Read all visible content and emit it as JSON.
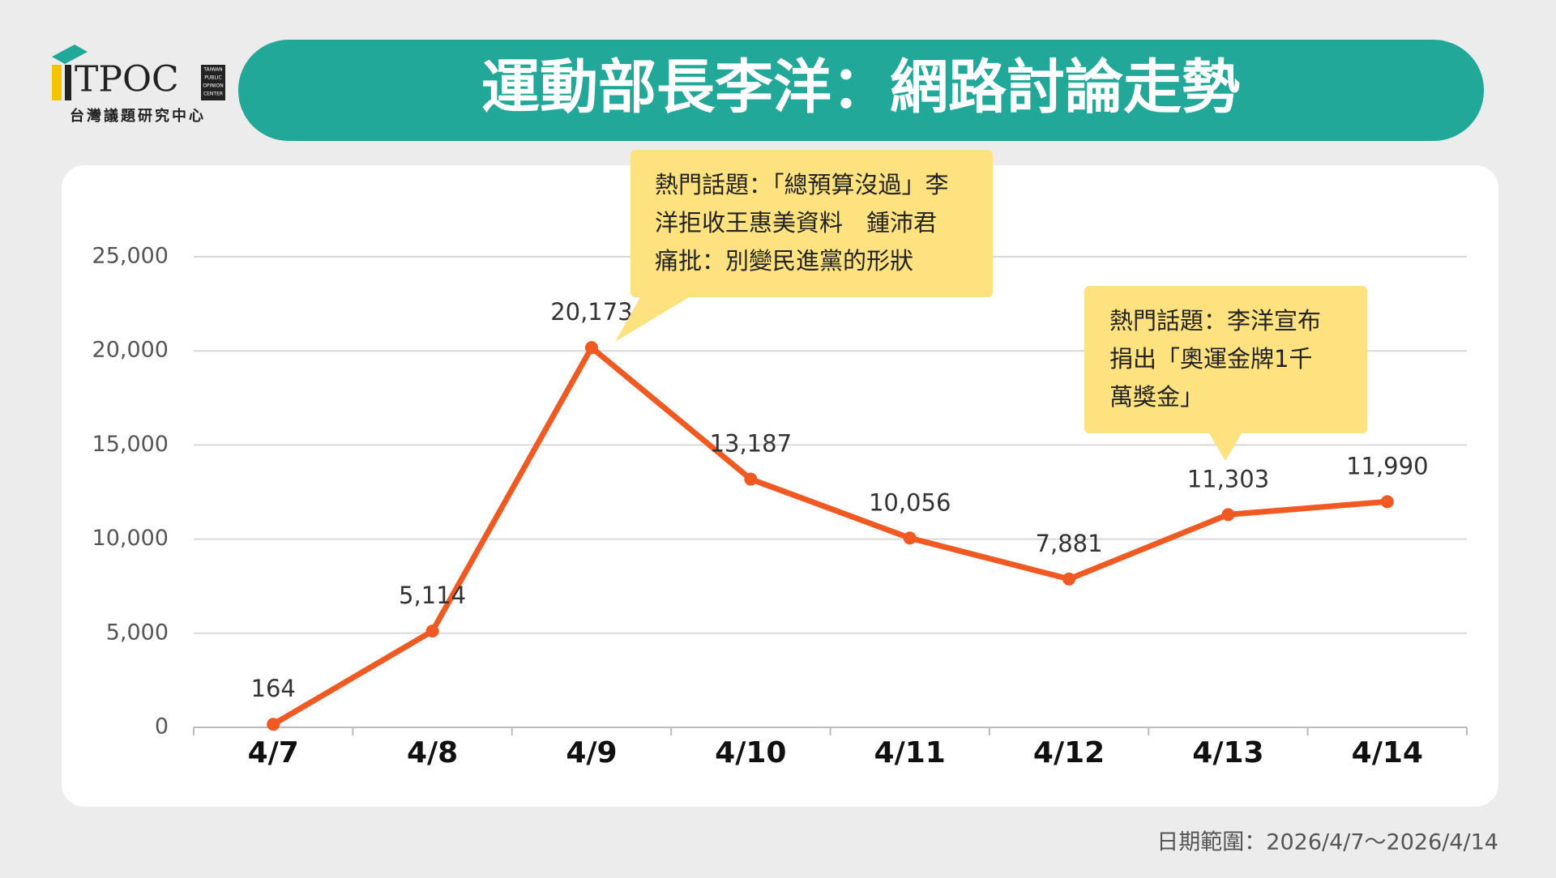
{
  "header": {
    "logo": "TPOC",
    "logo_small": [
      "TAIWAN",
      "PUBLIC",
      "OPINION",
      "CENTER"
    ],
    "org": "台灣議題研究中心",
    "title": "運動部長李洋：網路討論走勢"
  },
  "chart_data": {
    "type": "line",
    "categories": [
      "4/7",
      "4/8",
      "4/9",
      "4/10",
      "4/11",
      "4/12",
      "4/13",
      "4/14"
    ],
    "series": [
      {
        "color": "#f05a22",
        "values": [
          164,
          5114,
          20173,
          13187,
          10056,
          7881,
          11303,
          11990
        ],
        "value_labels": [
          "164",
          "5,114",
          "20,173",
          "13,187",
          "10,056",
          "7,881",
          "11,303",
          "11,990"
        ]
      }
    ],
    "ylim": [
      0,
      25000
    ],
    "yticks": [
      0,
      {
        "value": 5000,
        "label": "5,000"
      },
      {
        "value": 10000,
        "label": "10,000"
      },
      {
        "value": 15000,
        "label": "15,000"
      },
      {
        "value": 20000,
        "label": "20,000"
      },
      {
        "value": 25000,
        "label": "25,000"
      }
    ],
    "grid": true,
    "annotations": [
      {
        "category": "4/9",
        "lines": [
          "熱門話題：「總預算沒過」李",
          "洋拒收王惠美資料　鍾沛君",
          "痛批：別變民進黨的形狀"
        ]
      },
      {
        "category": "4/13",
        "lines": [
          "熱門話題：李洋宣布",
          "捐出「奧運金牌1千",
          "萬獎金」"
        ]
      }
    ]
  },
  "footer": "日期範圍：2026/4/7～2026/4/14"
}
